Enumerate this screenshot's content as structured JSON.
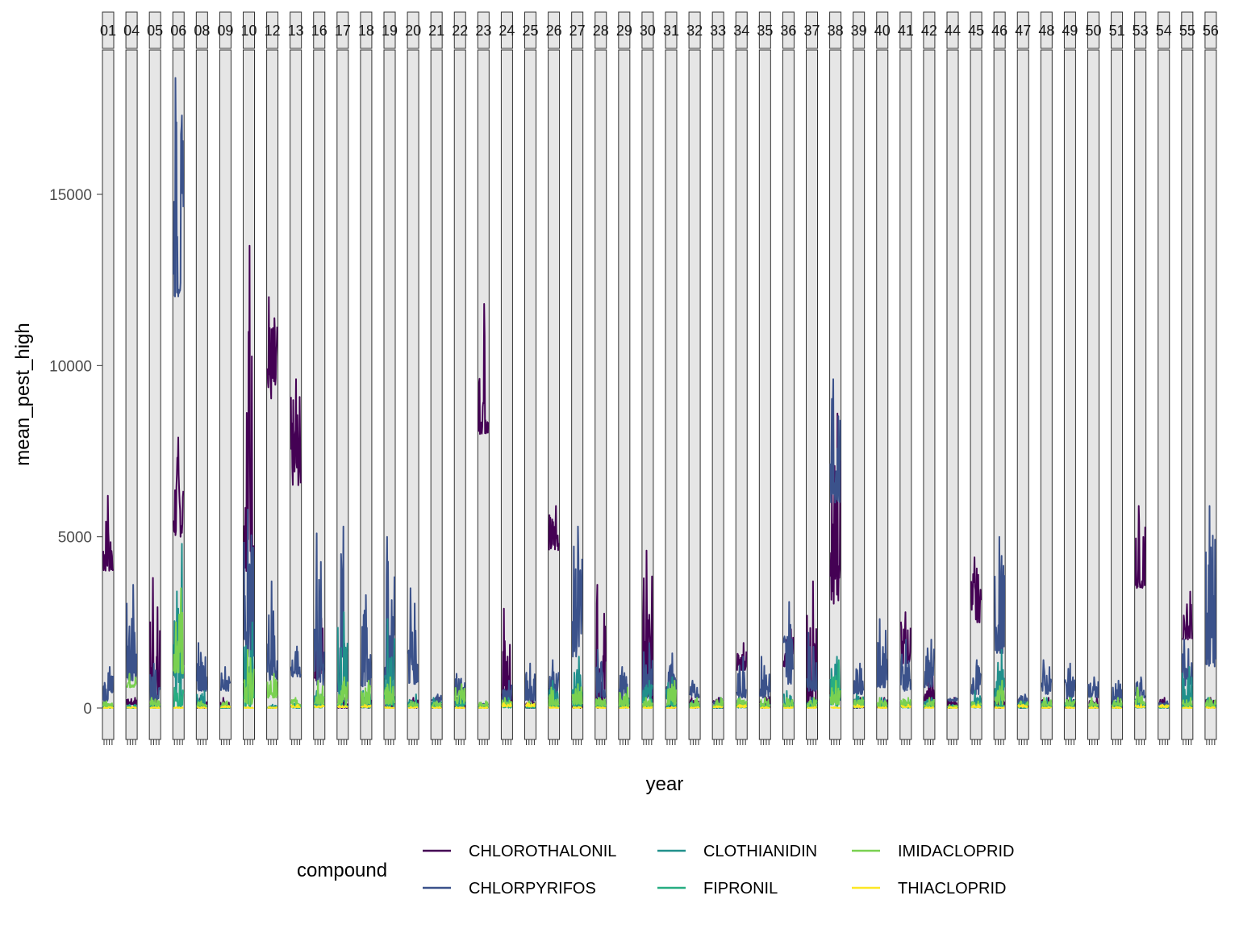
{
  "chart_data": {
    "type": "line",
    "title": "",
    "xlabel": "year",
    "ylabel": "mean_pest_high",
    "ylim": [
      -1000,
      19000
    ],
    "y_ticks": [
      0,
      5000,
      10000,
      15000
    ],
    "y_tick_labels": [
      "0",
      "5000",
      "10000",
      "15000"
    ],
    "grid": false,
    "legend_position": "bottom",
    "legend_title": "compound",
    "facet_labels": [
      "01",
      "04",
      "05",
      "06",
      "08",
      "09",
      "10",
      "12",
      "13",
      "16",
      "17",
      "18",
      "19",
      "20",
      "21",
      "22",
      "23",
      "24",
      "25",
      "26",
      "27",
      "28",
      "29",
      "30",
      "31",
      "32",
      "33",
      "34",
      "35",
      "36",
      "37",
      "38",
      "39",
      "40",
      "41",
      "42",
      "44",
      "45",
      "46",
      "47",
      "48",
      "49",
      "50",
      "51",
      "53",
      "54",
      "55",
      "56"
    ],
    "series": [
      {
        "name": "CHLOROTHALONIL",
        "color": "#440154",
        "panel_max": [
          6200,
          300,
          3800,
          7900,
          300,
          300,
          13500,
          12000,
          9600,
          3400,
          300,
          300,
          300,
          300,
          300,
          300,
          11800,
          2900,
          300,
          5900,
          300,
          3600,
          300,
          4600,
          300,
          300,
          300,
          1900,
          400,
          2300,
          3700,
          8600,
          300,
          300,
          2800,
          1000,
          300,
          4400,
          300,
          300,
          300,
          300,
          300,
          300,
          5900,
          300,
          3400,
          300
        ],
        "panel_base": [
          4000,
          100,
          0,
          5000,
          0,
          0,
          4000,
          9000,
          6500,
          800,
          0,
          0,
          0,
          0,
          0,
          0,
          8000,
          0,
          0,
          4600,
          0,
          0,
          0,
          0,
          0,
          0,
          0,
          1100,
          0,
          1200,
          0,
          3000,
          0,
          0,
          1300,
          200,
          0,
          2500,
          0,
          0,
          0,
          0,
          0,
          0,
          3500,
          0,
          2000,
          0
        ]
      },
      {
        "name": "CHLORPYRIFOS",
        "color": "#3b528b",
        "panel_max": [
          1200,
          3600,
          1300,
          18400,
          1900,
          1200,
          5800,
          3700,
          1800,
          5100,
          5300,
          3300,
          5000,
          3500,
          400,
          1000,
          200,
          800,
          1300,
          1400,
          5300,
          1700,
          1200,
          1900,
          1600,
          800,
          300,
          1500,
          1500,
          3100,
          2200,
          9600,
          1300,
          2600,
          2000,
          2000,
          300,
          1400,
          5000,
          400,
          1400,
          1300,
          900,
          800,
          900,
          200,
          2000,
          5900
        ],
        "panel_base": [
          200,
          800,
          200,
          12000,
          500,
          500,
          1500,
          800,
          900,
          600,
          400,
          600,
          800,
          700,
          200,
          300,
          50,
          200,
          200,
          400,
          1500,
          300,
          200,
          300,
          400,
          300,
          100,
          300,
          300,
          700,
          500,
          6000,
          400,
          600,
          500,
          600,
          200,
          400,
          1600,
          150,
          400,
          300,
          300,
          200,
          300,
          100,
          600,
          1200
        ]
      },
      {
        "name": "CLOTHIANIDIN",
        "color": "#21908c",
        "panel_max": [
          100,
          100,
          100,
          4800,
          500,
          100,
          2500,
          100,
          100,
          500,
          2800,
          500,
          2600,
          400,
          300,
          500,
          100,
          300,
          100,
          800,
          1500,
          300,
          400,
          800,
          900,
          200,
          100,
          300,
          200,
          500,
          300,
          1500,
          400,
          300,
          200,
          300,
          100,
          500,
          1700,
          200,
          300,
          300,
          200,
          200,
          300,
          100,
          1200,
          300
        ],
        "panel_base": [
          0,
          0,
          0,
          100,
          50,
          0,
          200,
          0,
          0,
          50,
          200,
          50,
          100,
          50,
          20,
          50,
          0,
          50,
          0,
          100,
          200,
          50,
          50,
          100,
          100,
          20,
          0,
          50,
          20,
          50,
          30,
          200,
          50,
          30,
          30,
          30,
          10,
          50,
          200,
          20,
          30,
          30,
          20,
          20,
          30,
          10,
          100,
          30
        ]
      },
      {
        "name": "FIPRONIL",
        "color": "#27ad81",
        "panel_max": [
          50,
          100,
          50,
          700,
          150,
          50,
          800,
          50,
          150,
          150,
          200,
          100,
          700,
          150,
          150,
          200,
          50,
          150,
          100,
          300,
          300,
          100,
          100,
          300,
          300,
          100,
          50,
          100,
          100,
          150,
          150,
          1400,
          150,
          100,
          100,
          100,
          50,
          150,
          200,
          50,
          100,
          100,
          50,
          50,
          150,
          50,
          150,
          100
        ],
        "panel_base": [
          0,
          0,
          0,
          20,
          10,
          0,
          30,
          0,
          10,
          10,
          20,
          10,
          30,
          10,
          10,
          20,
          0,
          10,
          10,
          20,
          20,
          10,
          10,
          20,
          20,
          10,
          0,
          10,
          10,
          10,
          10,
          50,
          10,
          10,
          10,
          10,
          0,
          10,
          20,
          0,
          10,
          10,
          0,
          0,
          10,
          0,
          10,
          10
        ]
      },
      {
        "name": "IMIDACLOPRID",
        "color": "#7ad151",
        "panel_max": [
          200,
          1000,
          300,
          3500,
          200,
          200,
          1700,
          1000,
          300,
          800,
          900,
          800,
          900,
          200,
          200,
          700,
          200,
          300,
          200,
          600,
          700,
          300,
          600,
          300,
          800,
          300,
          300,
          300,
          300,
          300,
          300,
          800,
          300,
          300,
          300,
          300,
          100,
          200,
          800,
          200,
          300,
          300,
          300,
          300,
          600,
          100,
          300,
          300
        ],
        "panel_base": [
          50,
          600,
          50,
          1000,
          50,
          50,
          100,
          300,
          50,
          100,
          100,
          100,
          100,
          50,
          50,
          100,
          50,
          50,
          50,
          50,
          100,
          50,
          50,
          50,
          100,
          50,
          50,
          50,
          50,
          50,
          50,
          100,
          50,
          50,
          50,
          50,
          20,
          50,
          100,
          50,
          50,
          50,
          50,
          50,
          100,
          20,
          50,
          50
        ]
      },
      {
        "name": "THIACLOPRID",
        "color": "#fde725",
        "panel_max": [
          30,
          30,
          30,
          30,
          30,
          60,
          30,
          30,
          100,
          80,
          80,
          100,
          30,
          30,
          30,
          30,
          30,
          150,
          150,
          30,
          30,
          30,
          30,
          30,
          30,
          30,
          60,
          100,
          30,
          30,
          30,
          30,
          100,
          30,
          100,
          30,
          30,
          100,
          30,
          100,
          30,
          30,
          30,
          30,
          100,
          100,
          30,
          30
        ],
        "panel_base": [
          0,
          0,
          0,
          0,
          0,
          20,
          0,
          0,
          20,
          20,
          20,
          20,
          0,
          0,
          0,
          0,
          0,
          40,
          40,
          0,
          0,
          0,
          0,
          0,
          0,
          0,
          20,
          20,
          0,
          0,
          0,
          0,
          20,
          0,
          20,
          0,
          0,
          20,
          0,
          20,
          0,
          0,
          0,
          0,
          20,
          20,
          0,
          0
        ]
      }
    ]
  }
}
